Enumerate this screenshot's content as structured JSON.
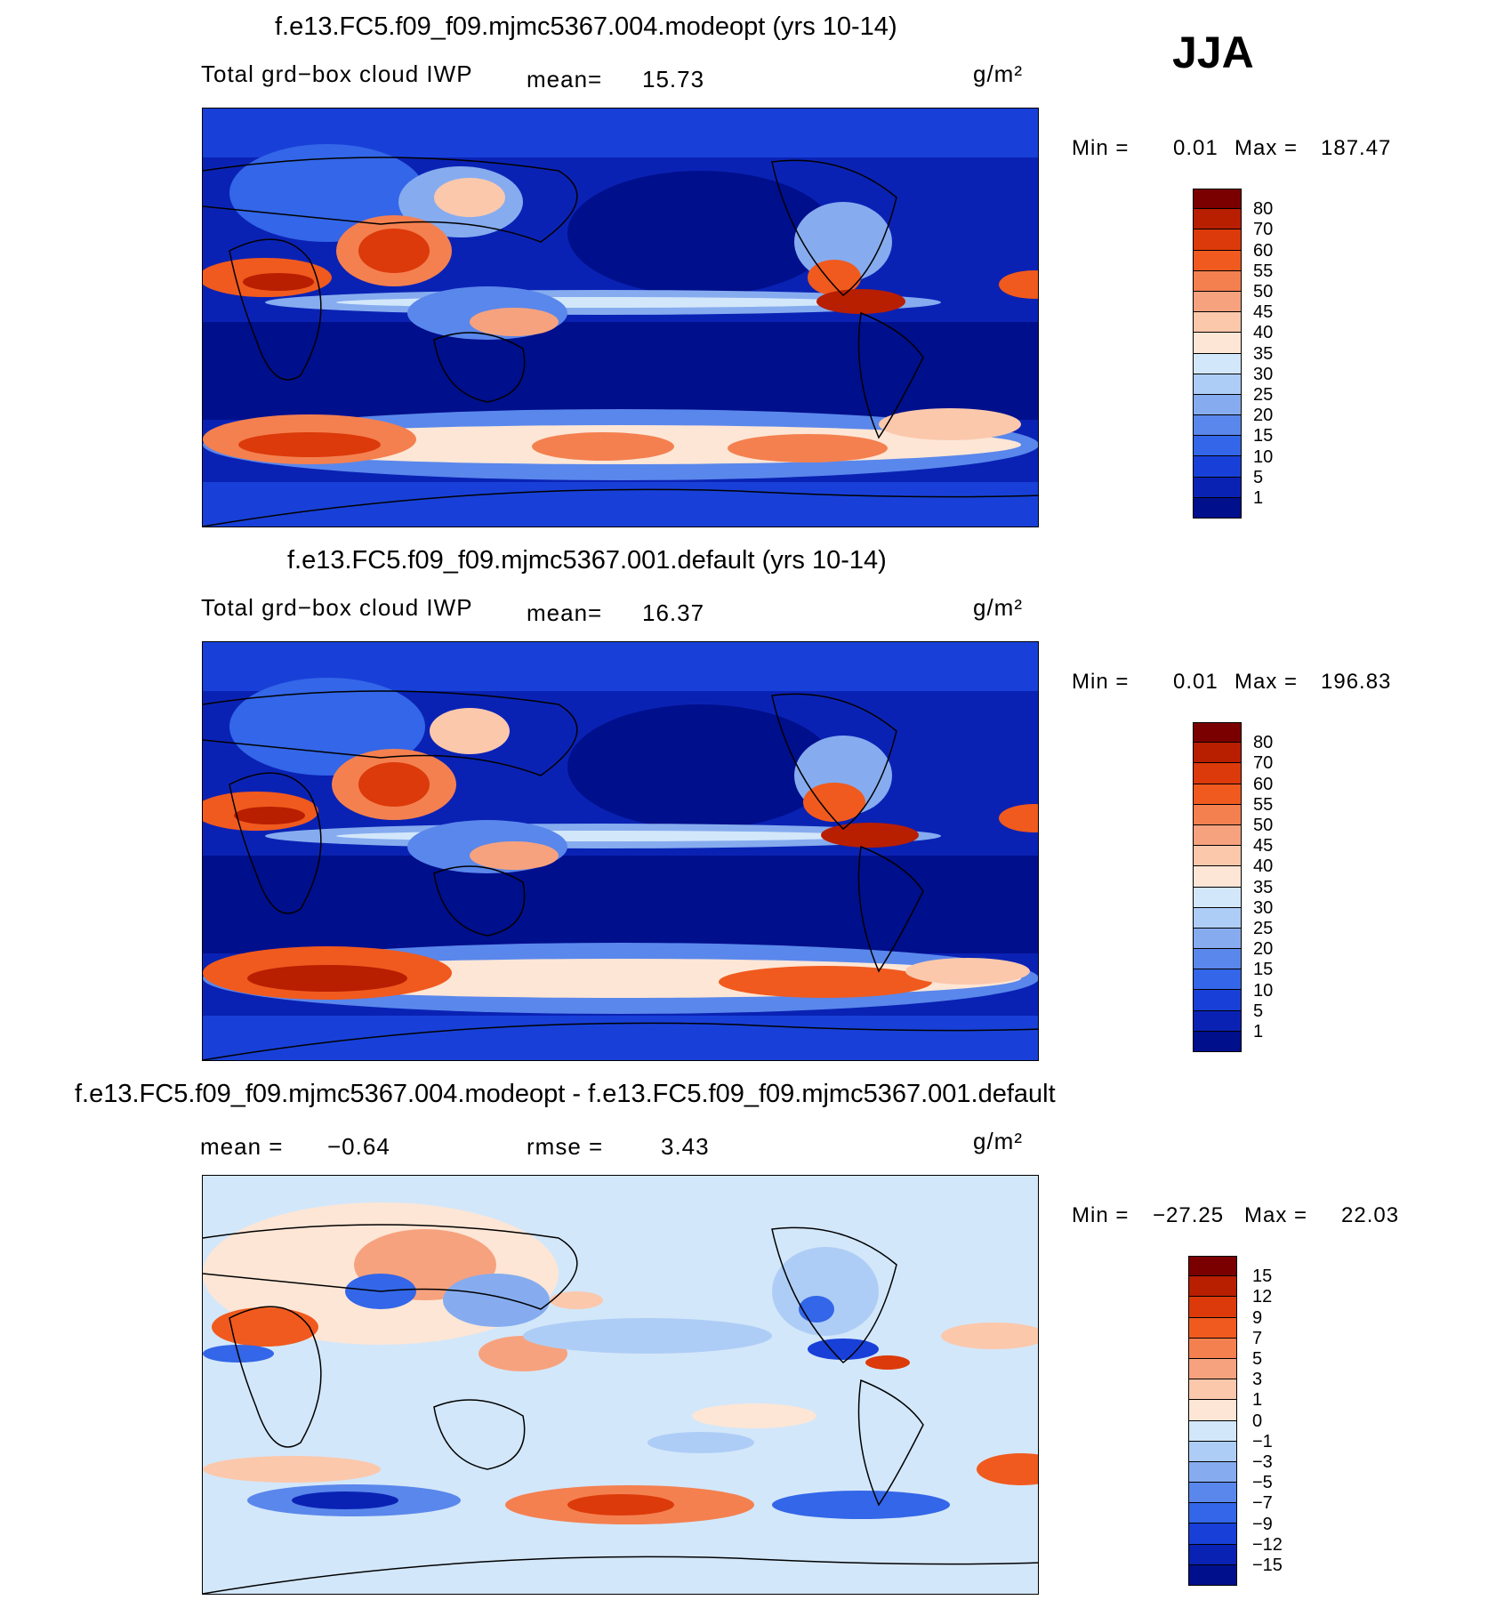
{
  "season": "JJA",
  "units": "g/m²",
  "panels": [
    {
      "title": "f.e13.FC5.f09_f09.mjmc5367.004.modeopt (yrs 10-14)",
      "variable": "Total grd−box cloud IWP",
      "mean_label": "mean=",
      "mean_value": "15.73",
      "min_label": "Min =",
      "min_value": "0.01",
      "max_label": "Max =",
      "max_value": "187.47",
      "levels": [
        "80",
        "70",
        "60",
        "55",
        "50",
        "45",
        "40",
        "35",
        "30",
        "25",
        "20",
        "15",
        "10",
        "5",
        "1"
      ],
      "colors": [
        "#7a0000",
        "#b81e00",
        "#dc3a0a",
        "#f05a1e",
        "#f48050",
        "#f7a27e",
        "#fbc8ac",
        "#fde6d6",
        "#d3e7fa",
        "#aecdf6",
        "#86acef",
        "#5a87eb",
        "#3366e8",
        "#1840d8",
        "#0a22b4",
        "#000f8c"
      ]
    },
    {
      "title": "f.e13.FC5.f09_f09.mjmc5367.001.default (yrs 10-14)",
      "variable": "Total grd−box cloud IWP",
      "mean_label": "mean=",
      "mean_value": "16.37",
      "min_label": "Min =",
      "min_value": "0.01",
      "max_label": "Max =",
      "max_value": "196.83",
      "levels": [
        "80",
        "70",
        "60",
        "55",
        "50",
        "45",
        "40",
        "35",
        "30",
        "25",
        "20",
        "15",
        "10",
        "5",
        "1"
      ],
      "colors": [
        "#7a0000",
        "#b81e00",
        "#dc3a0a",
        "#f05a1e",
        "#f48050",
        "#f7a27e",
        "#fbc8ac",
        "#fde6d6",
        "#d3e7fa",
        "#aecdf6",
        "#86acef",
        "#5a87eb",
        "#3366e8",
        "#1840d8",
        "#0a22b4",
        "#000f8c"
      ]
    },
    {
      "title": "f.e13.FC5.f09_f09.mjmc5367.004.modeopt - f.e13.FC5.f09_f09.mjmc5367.001.default",
      "mean_label": "mean =",
      "mean_value": "−0.64",
      "rmse_label": "rmse =",
      "rmse_value": "3.43",
      "min_label": "Min =",
      "min_value": "−27.25",
      "max_label": "Max =",
      "max_value": "22.03",
      "levels": [
        "15",
        "12",
        "9",
        "7",
        "5",
        "3",
        "1",
        "0",
        "−1",
        "−3",
        "−5",
        "−7",
        "−9",
        "−12",
        "−15"
      ],
      "colors": [
        "#7a0000",
        "#b81e00",
        "#dc3a0a",
        "#f05a1e",
        "#f48050",
        "#f7a27e",
        "#fbc8ac",
        "#fde6d6",
        "#d3e7fa",
        "#aecdf6",
        "#86acef",
        "#5a87eb",
        "#3366e8",
        "#1840d8",
        "#0a22b4",
        "#000f8c"
      ]
    }
  ],
  "chart_data": [
    {
      "type": "heatmap",
      "title": "f.e13.FC5.f09_f09.mjmc5367.004.modeopt (yrs 10-14)",
      "season": "JJA",
      "variable": "Total grd−box cloud IWP",
      "units": "g/m²",
      "mean": 15.73,
      "min": 0.01,
      "max": 187.47,
      "contour_levels": [
        1,
        5,
        10,
        15,
        20,
        25,
        30,
        35,
        40,
        45,
        50,
        55,
        60,
        70,
        80
      ]
    },
    {
      "type": "heatmap",
      "title": "f.e13.FC5.f09_f09.mjmc5367.001.default (yrs 10-14)",
      "season": "JJA",
      "variable": "Total grd−box cloud IWP",
      "units": "g/m²",
      "mean": 16.37,
      "min": 0.01,
      "max": 196.83,
      "contour_levels": [
        1,
        5,
        10,
        15,
        20,
        25,
        30,
        35,
        40,
        45,
        50,
        55,
        60,
        70,
        80
      ]
    },
    {
      "type": "heatmap",
      "title": "f.e13.FC5.f09_f09.mjmc5367.004.modeopt - f.e13.FC5.f09_f09.mjmc5367.001.default",
      "season": "JJA",
      "units": "g/m²",
      "mean": -0.64,
      "rmse": 3.43,
      "min": -27.25,
      "max": 22.03,
      "contour_levels": [
        -15,
        -12,
        -9,
        -7,
        -5,
        -3,
        -1,
        0,
        1,
        3,
        5,
        7,
        9,
        12,
        15
      ]
    }
  ]
}
